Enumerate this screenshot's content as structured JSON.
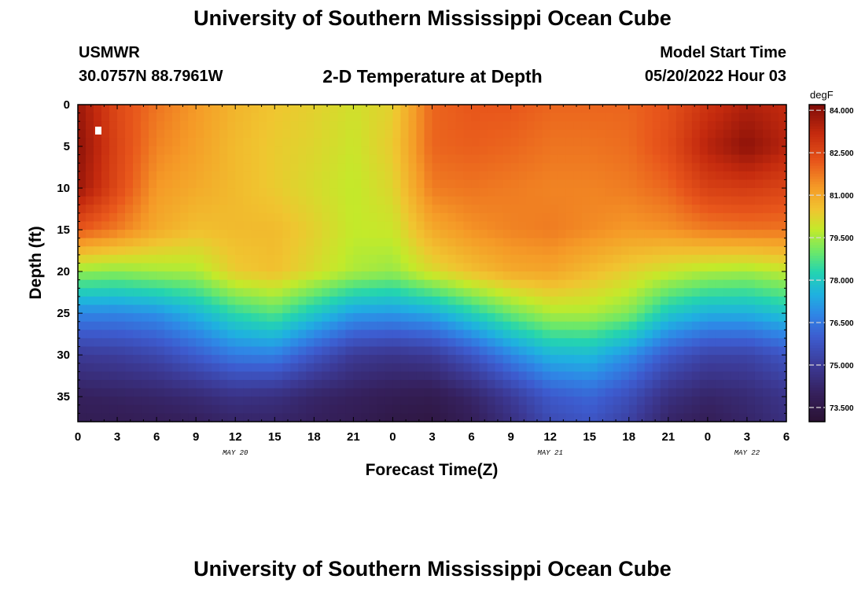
{
  "page": {
    "title": "University of Southern Mississippi Ocean Cube",
    "station": "USMWR",
    "location": "30.0757N  88.7961W",
    "plot_title": "2-D Temperature at Depth",
    "model_label": "Model Start Time",
    "model_time": "05/20/2022 Hour 03",
    "footer_title": "University of Southern Mississippi Ocean Cube"
  },
  "chart_data": {
    "type": "heatmap",
    "title": "2-D Temperature at Depth",
    "xlabel": "Forecast Time(Z)",
    "ylabel": "Depth (ft)",
    "x_unit": "hours since 05/20 00Z",
    "xlim": [
      0,
      54
    ],
    "ylim": [
      38,
      0
    ],
    "x_ticks": [
      {
        "hour": 0,
        "label": "0"
      },
      {
        "hour": 3,
        "label": "3"
      },
      {
        "hour": 6,
        "label": "6"
      },
      {
        "hour": 9,
        "label": "9"
      },
      {
        "hour": 12,
        "label": "12"
      },
      {
        "hour": 15,
        "label": "15"
      },
      {
        "hour": 18,
        "label": "18"
      },
      {
        "hour": 21,
        "label": "21"
      },
      {
        "hour": 24,
        "label": "0"
      },
      {
        "hour": 27,
        "label": "3"
      },
      {
        "hour": 30,
        "label": "6"
      },
      {
        "hour": 33,
        "label": "9"
      },
      {
        "hour": 36,
        "label": "12"
      },
      {
        "hour": 39,
        "label": "15"
      },
      {
        "hour": 42,
        "label": "18"
      },
      {
        "hour": 45,
        "label": "21"
      },
      {
        "hour": 48,
        "label": "0"
      },
      {
        "hour": 51,
        "label": "3"
      },
      {
        "hour": 54,
        "label": "6"
      }
    ],
    "date_labels": [
      {
        "hour": 12,
        "label": "MAY 20"
      },
      {
        "hour": 36,
        "label": "MAY 21"
      },
      {
        "hour": 51,
        "label": "MAY 22"
      }
    ],
    "y_ticks": [
      0,
      5,
      10,
      15,
      20,
      25,
      30,
      35
    ],
    "colorbar": {
      "unit": "degF",
      "min": 73.0,
      "max": 84.2,
      "tick_values": [
        84.0,
        82.5,
        81.0,
        79.5,
        78.0,
        76.5,
        75.0,
        73.5
      ],
      "tick_labels": [
        "84.000",
        "82.500",
        "81.000",
        "79.500",
        "78.000",
        "76.500",
        "75.000",
        "73.500"
      ],
      "colormap": [
        {
          "v": 73.0,
          "c": "#2b1233"
        },
        {
          "v": 74.0,
          "c": "#35205c"
        },
        {
          "v": 75.0,
          "c": "#3c3a96"
        },
        {
          "v": 76.0,
          "c": "#3d5ccf"
        },
        {
          "v": 76.8,
          "c": "#2f86e6"
        },
        {
          "v": 77.5,
          "c": "#1fb1e0"
        },
        {
          "v": 78.3,
          "c": "#24d4b0"
        },
        {
          "v": 79.0,
          "c": "#6be86a"
        },
        {
          "v": 79.8,
          "c": "#c3ea2a"
        },
        {
          "v": 80.5,
          "c": "#f0c530"
        },
        {
          "v": 81.3,
          "c": "#f59a27"
        },
        {
          "v": 82.2,
          "c": "#e8561b"
        },
        {
          "v": 83.2,
          "c": "#c42a0e"
        },
        {
          "v": 84.2,
          "c": "#7f0c08"
        }
      ]
    },
    "field_description": "Surface layer near 81-84 degF, sharp thermocline near 20-25 ft oscillating with ~24 h period, bottom water 73.5-75 degF",
    "hours": [
      0,
      3,
      6,
      9,
      12,
      15,
      18,
      21,
      24,
      27,
      30,
      33,
      36,
      39,
      42,
      45,
      48,
      51,
      54
    ],
    "depths_ft": [
      0,
      5,
      10,
      15,
      20,
      25,
      30,
      35,
      38
    ],
    "temperature_degF": [
      [
        83.8,
        82.5,
        81.8,
        81.3,
        80.8,
        80.5,
        80.3,
        80.0,
        80.3,
        82.0,
        82.2,
        82.2,
        82.0,
        82.0,
        82.0,
        82.3,
        83.0,
        83.5,
        83.2
      ],
      [
        84.0,
        82.6,
        81.6,
        81.2,
        80.7,
        80.4,
        80.2,
        79.9,
        80.4,
        82.0,
        82.1,
        82.0,
        81.8,
        81.8,
        81.9,
        82.4,
        83.4,
        84.0,
        83.4
      ],
      [
        83.8,
        82.5,
        81.3,
        81.0,
        80.7,
        80.4,
        80.1,
        79.8,
        80.2,
        81.7,
        81.8,
        81.7,
        81.6,
        81.6,
        81.7,
        82.0,
        82.7,
        82.8,
        82.6
      ],
      [
        82.2,
        81.7,
        81.0,
        80.6,
        80.7,
        80.7,
        80.3,
        79.8,
        79.9,
        81.0,
        81.4,
        81.6,
        81.7,
        81.5,
        81.3,
        81.4,
        81.7,
        81.8,
        81.8
      ],
      [
        79.4,
        79.3,
        79.5,
        79.6,
        80.4,
        80.6,
        80.1,
        79.6,
        79.4,
        80.1,
        80.6,
        81.0,
        81.1,
        80.7,
        80.3,
        79.9,
        79.6,
        79.5,
        79.8
      ],
      [
        76.8,
        76.8,
        77.0,
        77.6,
        78.4,
        78.8,
        78.0,
        77.2,
        77.1,
        77.4,
        78.2,
        79.0,
        79.6,
        79.6,
        79.2,
        78.0,
        77.5,
        77.5,
        77.9
      ],
      [
        75.0,
        75.1,
        75.4,
        76.0,
        76.6,
        76.7,
        75.8,
        75.0,
        74.8,
        75.0,
        75.8,
        76.8,
        77.6,
        77.7,
        77.0,
        75.9,
        75.3,
        75.3,
        75.8
      ],
      [
        74.0,
        74.1,
        74.2,
        74.4,
        74.7,
        74.6,
        74.2,
        74.0,
        73.8,
        73.7,
        74.2,
        75.0,
        75.9,
        76.2,
        75.6,
        74.6,
        74.2,
        74.4,
        74.8
      ],
      [
        73.8,
        73.8,
        73.9,
        74.0,
        74.2,
        74.2,
        74.0,
        73.8,
        73.5,
        73.4,
        73.9,
        74.6,
        75.5,
        75.8,
        75.2,
        74.2,
        73.9,
        74.2,
        74.6
      ]
    ]
  }
}
